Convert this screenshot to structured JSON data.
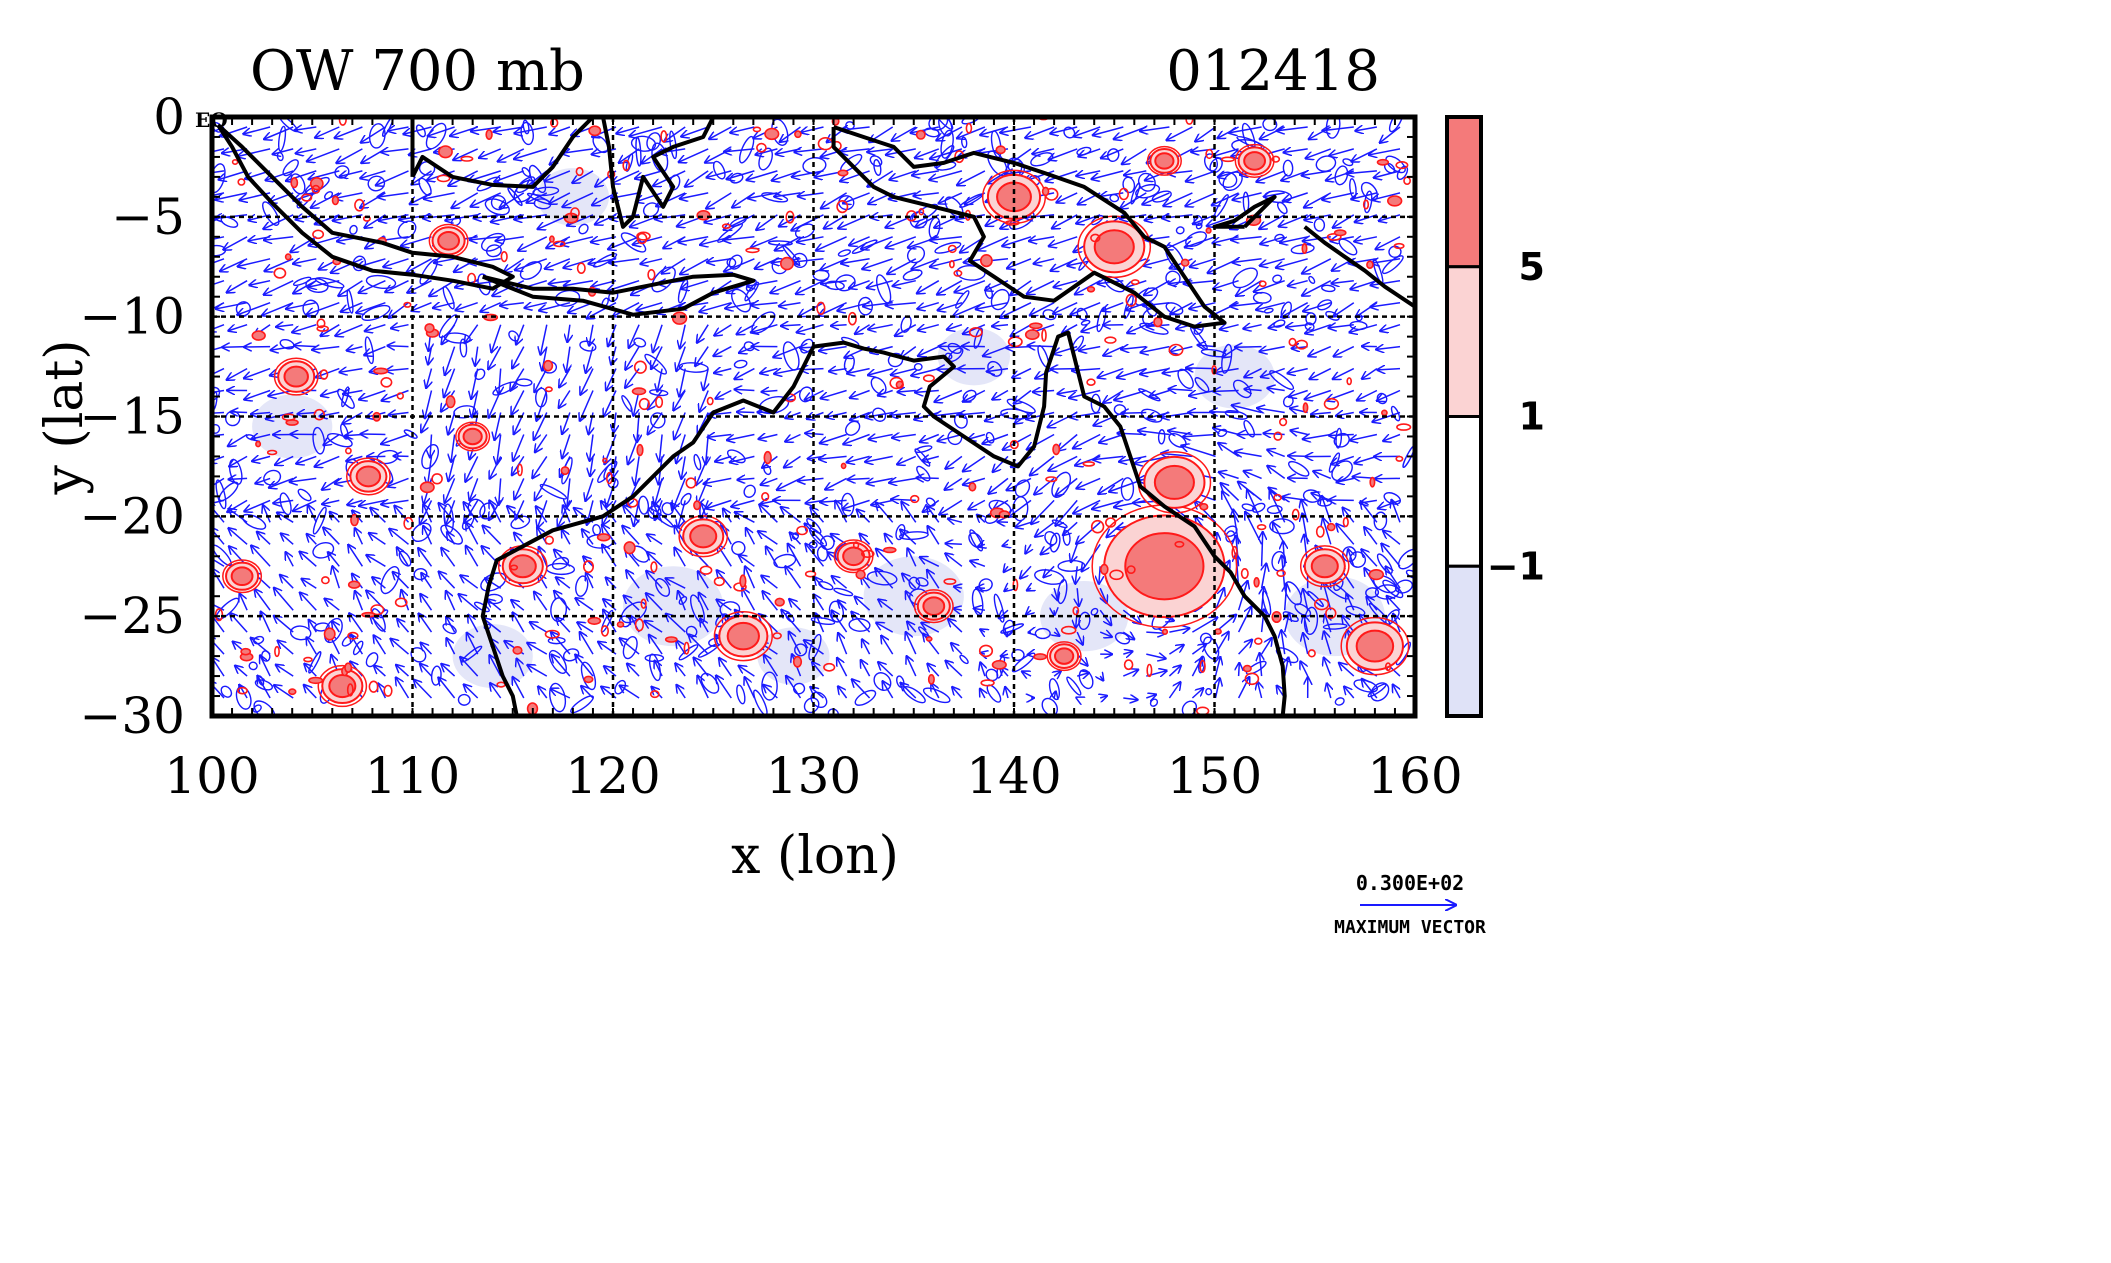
{
  "chart_data": {
    "type": "contour",
    "title": "OW 700 mb",
    "subtitle": "012418",
    "xlabel": "x (lon)",
    "ylabel": "y (lat)",
    "xlim": [
      100,
      160
    ],
    "ylim": [
      -30,
      0
    ],
    "x_ticks": [
      {
        "value": 100,
        "label": "100"
      },
      {
        "value": 110,
        "label": "110"
      },
      {
        "value": 120,
        "label": "120"
      },
      {
        "value": 130,
        "label": "130"
      },
      {
        "value": 140,
        "label": "140"
      },
      {
        "value": 150,
        "label": "150"
      },
      {
        "value": 160,
        "label": "160"
      }
    ],
    "y_ticks": [
      {
        "value": 0,
        "label": "0"
      },
      {
        "value": -5,
        "label": "−5"
      },
      {
        "value": -10,
        "label": "−10"
      },
      {
        "value": -15,
        "label": "−15"
      },
      {
        "value": -20,
        "label": "−20"
      },
      {
        "value": -25,
        "label": "−25"
      },
      {
        "value": -30,
        "label": "−30"
      }
    ],
    "corner_label": "EQ",
    "grid": true,
    "colorbar": {
      "levels": [
        {
          "label": "5",
          "color": "#f47a7a"
        },
        {
          "label": "1",
          "color": "#fbd3d3"
        },
        {
          "label": "-1",
          "color": "#ffffff"
        },
        {
          "label": "",
          "color": "#dfe2f7"
        }
      ],
      "tick_labels": [
        "5",
        "1",
        "−1"
      ]
    },
    "vector_legend": {
      "value": "0.300E+02",
      "caption": "MAXIMUM VECTOR"
    },
    "positive_blobs": [
      {
        "lon": 147.5,
        "lat": -22.5,
        "r": 3.0
      },
      {
        "lon": 148.0,
        "lat": -18.3,
        "r": 1.5
      },
      {
        "lon": 115.5,
        "lat": -22.5,
        "r": 1.0
      },
      {
        "lon": 104.2,
        "lat": -13.0,
        "r": 0.9
      },
      {
        "lon": 126.5,
        "lat": -26.0,
        "r": 1.2
      },
      {
        "lon": 158.0,
        "lat": -26.5,
        "r": 1.4
      },
      {
        "lon": 111.8,
        "lat": -6.2,
        "r": 0.8
      },
      {
        "lon": 140.0,
        "lat": -4.0,
        "r": 1.3
      },
      {
        "lon": 145.0,
        "lat": -6.5,
        "r": 1.5
      },
      {
        "lon": 152.0,
        "lat": -2.2,
        "r": 0.8
      },
      {
        "lon": 147.5,
        "lat": -2.2,
        "r": 0.7
      },
      {
        "lon": 106.5,
        "lat": -28.5,
        "r": 1.0
      },
      {
        "lon": 107.8,
        "lat": -18.0,
        "r": 0.9
      },
      {
        "lon": 124.5,
        "lat": -21.0,
        "r": 1.0
      },
      {
        "lon": 132.0,
        "lat": -22.0,
        "r": 0.8
      },
      {
        "lon": 155.5,
        "lat": -22.5,
        "r": 1.0
      },
      {
        "lon": 113.0,
        "lat": -16.0,
        "r": 0.7
      },
      {
        "lon": 136.0,
        "lat": -24.5,
        "r": 0.8
      },
      {
        "lon": 142.5,
        "lat": -27.0,
        "r": 0.7
      },
      {
        "lon": 101.5,
        "lat": -23.0,
        "r": 0.8
      }
    ],
    "negative_regions": [
      {
        "lon": 104.0,
        "lat": -15.5,
        "r": 2.0
      },
      {
        "lon": 123.0,
        "lat": -24.5,
        "r": 2.5
      },
      {
        "lon": 135.0,
        "lat": -24.0,
        "r": 2.5
      },
      {
        "lon": 143.5,
        "lat": -25.0,
        "r": 2.2
      },
      {
        "lon": 156.0,
        "lat": -25.0,
        "r": 2.5
      },
      {
        "lon": 138.0,
        "lat": -12.0,
        "r": 1.8
      },
      {
        "lon": 151.0,
        "lat": -13.0,
        "r": 2.0
      },
      {
        "lon": 118.0,
        "lat": -4.0,
        "r": 1.8
      },
      {
        "lon": 114.0,
        "lat": -27.0,
        "r": 2.0
      },
      {
        "lon": 129.0,
        "lat": -27.0,
        "r": 1.8
      }
    ],
    "cyclone_center": {
      "lon": 147.5,
      "lat": -22.5
    },
    "coastlines": [
      [
        [
          100.3,
          -0.4
        ],
        [
          101.5,
          -1.5
        ],
        [
          103.0,
          -3.0
        ],
        [
          104.5,
          -4.5
        ],
        [
          106.0,
          -5.8
        ],
        [
          107.0,
          -6.0
        ],
        [
          108.5,
          -6.3
        ],
        [
          110.0,
          -6.8
        ],
        [
          112.0,
          -7.0
        ],
        [
          114.0,
          -7.5
        ],
        [
          115.0,
          -8.0
        ],
        [
          114.0,
          -8.6
        ],
        [
          112.0,
          -8.2
        ],
        [
          110.0,
          -7.9
        ],
        [
          108.0,
          -7.7
        ],
        [
          106.0,
          -7.0
        ],
        [
          104.5,
          -5.8
        ],
        [
          103.0,
          -4.3
        ],
        [
          101.8,
          -3.0
        ],
        [
          101.0,
          -1.5
        ],
        [
          100.3,
          -0.4
        ]
      ],
      [
        [
          113.5,
          -8.0
        ],
        [
          116.0,
          -8.6
        ],
        [
          118.0,
          -8.6
        ],
        [
          120.0,
          -8.8
        ],
        [
          122.0,
          -8.4
        ],
        [
          124.0,
          -8.0
        ],
        [
          126.0,
          -7.9
        ],
        [
          127.0,
          -8.2
        ],
        [
          125.0,
          -8.8
        ],
        [
          123.5,
          -9.6
        ],
        [
          121.0,
          -9.9
        ],
        [
          118.5,
          -9.2
        ],
        [
          116.0,
          -9.0
        ],
        [
          113.5,
          -8.0
        ]
      ],
      [
        [
          110.0,
          -3.0
        ],
        [
          110.5,
          -2.0
        ],
        [
          112.0,
          -3.0
        ],
        [
          114.0,
          -3.4
        ],
        [
          116.0,
          -3.5
        ],
        [
          117.0,
          -2.5
        ],
        [
          118.0,
          -1.0
        ],
        [
          119.0,
          0.0
        ],
        [
          110.0,
          0.0
        ],
        [
          110.0,
          -3.0
        ]
      ],
      [
        [
          119.5,
          0.0
        ],
        [
          119.8,
          -1.5
        ],
        [
          120.0,
          -3.5
        ],
        [
          120.5,
          -5.5
        ],
        [
          121.0,
          -5.0
        ],
        [
          121.5,
          -3.0
        ],
        [
          122.5,
          -4.5
        ],
        [
          123.0,
          -3.5
        ],
        [
          122.0,
          -2.0
        ],
        [
          123.0,
          -1.5
        ],
        [
          124.5,
          -1.0
        ],
        [
          125.0,
          0.0
        ]
      ],
      [
        [
          131.0,
          -0.5
        ],
        [
          132.5,
          -1.0
        ],
        [
          134.0,
          -1.5
        ],
        [
          135.0,
          -2.5
        ],
        [
          136.5,
          -2.3
        ],
        [
          138.0,
          -1.8
        ],
        [
          140.0,
          -2.3
        ],
        [
          141.5,
          -2.8
        ],
        [
          143.5,
          -3.5
        ],
        [
          145.5,
          -4.8
        ],
        [
          146.5,
          -6.0
        ],
        [
          147.5,
          -6.5
        ],
        [
          148.5,
          -8.0
        ],
        [
          149.5,
          -9.5
        ],
        [
          150.5,
          -10.3
        ],
        [
          149.0,
          -10.5
        ],
        [
          147.5,
          -10.0
        ],
        [
          146.0,
          -8.8
        ],
        [
          144.0,
          -7.8
        ],
        [
          143.0,
          -8.5
        ],
        [
          142.0,
          -9.2
        ],
        [
          140.5,
          -9.0
        ],
        [
          139.0,
          -8.0
        ],
        [
          137.8,
          -7.2
        ],
        [
          138.5,
          -6.0
        ],
        [
          138.0,
          -5.0
        ],
        [
          136.0,
          -4.5
        ],
        [
          134.0,
          -4.0
        ],
        [
          133.0,
          -3.5
        ],
        [
          132.0,
          -2.5
        ],
        [
          131.0,
          -1.5
        ],
        [
          131.0,
          -0.5
        ]
      ],
      [
        [
          151.5,
          -5.5
        ],
        [
          152.5,
          -4.5
        ],
        [
          153.0,
          -4.0
        ],
        [
          152.0,
          -4.5
        ],
        [
          151.0,
          -5.2
        ],
        [
          150.0,
          -5.5
        ],
        [
          151.5,
          -5.5
        ]
      ],
      [
        [
          154.5,
          -5.5
        ],
        [
          155.5,
          -6.3
        ],
        [
          156.5,
          -7.0
        ],
        [
          157.5,
          -7.7
        ],
        [
          158.5,
          -8.5
        ],
        [
          160.0,
          -9.5
        ]
      ],
      [
        [
          130.0,
          -11.5
        ],
        [
          131.5,
          -11.3
        ],
        [
          132.5,
          -11.6
        ],
        [
          133.5,
          -11.8
        ],
        [
          135.0,
          -12.2
        ],
        [
          136.5,
          -12.0
        ],
        [
          137.0,
          -12.5
        ],
        [
          135.8,
          -13.5
        ],
        [
          135.5,
          -14.5
        ],
        [
          136.0,
          -15.0
        ],
        [
          137.5,
          -16.0
        ],
        [
          139.0,
          -17.0
        ],
        [
          140.2,
          -17.5
        ],
        [
          141.0,
          -16.5
        ],
        [
          141.5,
          -14.5
        ],
        [
          141.6,
          -12.8
        ],
        [
          142.2,
          -11.0
        ],
        [
          142.7,
          -10.8
        ],
        [
          143.0,
          -12.0
        ],
        [
          143.5,
          -14.0
        ],
        [
          144.5,
          -14.5
        ],
        [
          145.3,
          -15.5
        ],
        [
          145.8,
          -17.0
        ],
        [
          146.3,
          -18.5
        ],
        [
          147.5,
          -19.5
        ],
        [
          149.0,
          -20.5
        ],
        [
          150.0,
          -22.0
        ],
        [
          150.8,
          -22.8
        ],
        [
          151.5,
          -24.0
        ],
        [
          152.5,
          -25.0
        ],
        [
          153.0,
          -26.0
        ],
        [
          153.4,
          -27.5
        ],
        [
          153.5,
          -29.0
        ],
        [
          153.4,
          -30.0
        ]
      ],
      [
        [
          130.0,
          -11.5
        ],
        [
          129.0,
          -13.5
        ],
        [
          128.0,
          -14.8
        ],
        [
          126.5,
          -14.2
        ],
        [
          125.0,
          -14.8
        ],
        [
          124.0,
          -16.3
        ],
        [
          123.0,
          -17.0
        ],
        [
          122.0,
          -18.0
        ],
        [
          121.0,
          -19.0
        ],
        [
          119.5,
          -20.0
        ],
        [
          117.0,
          -20.7
        ],
        [
          115.5,
          -21.5
        ],
        [
          114.2,
          -22.2
        ],
        [
          113.8,
          -23.5
        ],
        [
          113.5,
          -25.0
        ],
        [
          114.0,
          -26.5
        ],
        [
          114.5,
          -28.0
        ],
        [
          115.0,
          -29.0
        ],
        [
          115.2,
          -30.0
        ]
      ]
    ]
  }
}
